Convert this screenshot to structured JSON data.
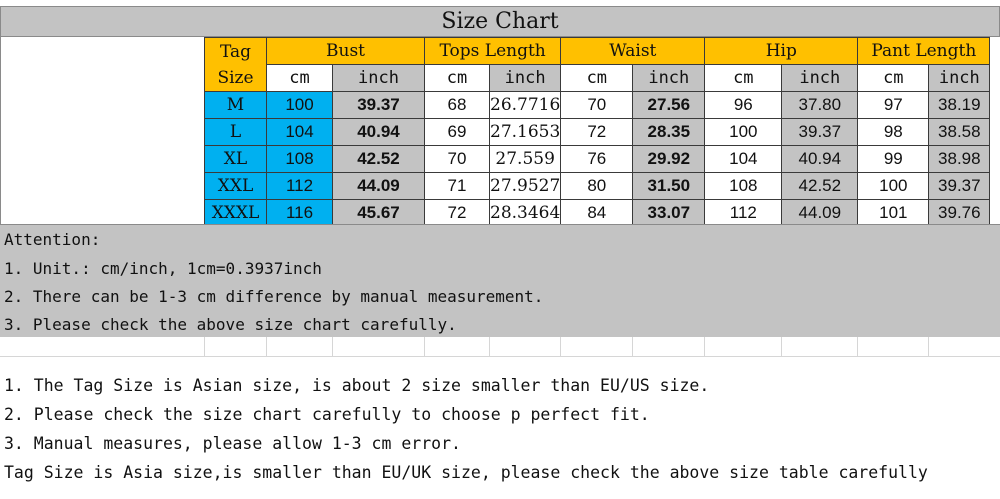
{
  "title": "Size Chart",
  "header": {
    "tag": "Tag",
    "size": "Size",
    "groups": [
      "Bust",
      "Tops Length",
      "Waist",
      "Hip",
      "Pant Length"
    ],
    "units": [
      "cm",
      "inch",
      "cm",
      "inch",
      "cm",
      "inch",
      "cm",
      "inch",
      "cm",
      "inch"
    ]
  },
  "rows": [
    {
      "size": "M",
      "values": [
        "100",
        "39.37",
        "68",
        "26.7716",
        "70",
        "27.56",
        "96",
        "37.80",
        "97",
        "38.19"
      ]
    },
    {
      "size": "L",
      "values": [
        "104",
        "40.94",
        "69",
        "27.1653",
        "72",
        "28.35",
        "100",
        "39.37",
        "98",
        "38.58"
      ]
    },
    {
      "size": "XL",
      "values": [
        "108",
        "42.52",
        "70",
        "27.559",
        "76",
        "29.92",
        "104",
        "40.94",
        "99",
        "38.98"
      ]
    },
    {
      "size": "XXL",
      "values": [
        "112",
        "44.09",
        "71",
        "27.9527",
        "80",
        "31.50",
        "108",
        "42.52",
        "100",
        "39.37"
      ]
    },
    {
      "size": "XXXL",
      "values": [
        "116",
        "45.67",
        "72",
        "28.3464",
        "84",
        "33.07",
        "112",
        "44.09",
        "101",
        "39.76"
      ]
    }
  ],
  "attention": {
    "heading": "Attention:",
    "items": [
      "1. Unit.: cm/inch, 1cm=0.3937inch",
      "2. There can be 1-3 cm difference by manual measurement.",
      "3. Please check the above size chart carefully."
    ]
  },
  "notes": [
    "1. The Tag Size is Asian size, is about 2 size smaller than EU/US size.",
    "2. Please check the size chart carefully to choose p perfect fit.",
    "3. Manual measures, please allow 1-3 cm error.",
    "Tag Size is Asia size,is smaller than EU/UK size, please check the above size table carefully"
  ],
  "colors": {
    "header": "#ffc000",
    "size_column": "#00b0f0",
    "gray": "#c3c3c3"
  }
}
